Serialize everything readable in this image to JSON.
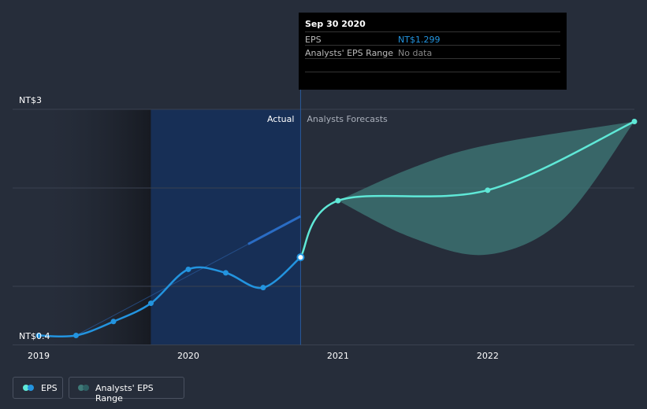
{
  "colors": {
    "background": "#262d3a",
    "eps_actual": "#2394df",
    "eps_forecast": "#5fe8d7",
    "range_fill": "#3f7a78",
    "actual_highlight": "#16305a"
  },
  "tooltip": {
    "date": "Sep 30 2020",
    "rows": [
      {
        "label": "EPS",
        "value": "NT$1.299",
        "color": "#2394df"
      },
      {
        "label": "Analysts' EPS Range",
        "value": "No data",
        "color": "#888888"
      }
    ]
  },
  "legend": {
    "eps_label": "EPS",
    "range_label": "Analysts' EPS Range"
  },
  "chart_data": {
    "type": "line",
    "title": "",
    "xlabel": "",
    "ylabel": "",
    "x_ticks": [
      "2019",
      "2020",
      "2021",
      "2022"
    ],
    "y_tick_labels": [
      "NT$3",
      "NT$0.4"
    ],
    "y_range": [
      0.4,
      3
    ],
    "section_labels": {
      "actual": "Actual",
      "forecast": "Analysts Forecasts"
    },
    "series": [
      {
        "name": "EPS",
        "segment": "actual",
        "points": [
          {
            "x": 2019.0,
            "y": 0.4
          },
          {
            "x": 2019.25,
            "y": 0.4
          },
          {
            "x": 2019.5,
            "y": 0.56
          },
          {
            "x": 2019.75,
            "y": 0.77
          },
          {
            "x": 2020.0,
            "y": 1.16
          },
          {
            "x": 2020.25,
            "y": 1.12
          },
          {
            "x": 2020.5,
            "y": 0.95
          },
          {
            "x": 2020.75,
            "y": 1.299
          }
        ]
      },
      {
        "name": "EPS",
        "segment": "forecast",
        "points": [
          {
            "x": 2020.75,
            "y": 1.299
          },
          {
            "x": 2021.0,
            "y": 1.95
          },
          {
            "x": 2022.0,
            "y": 2.07
          },
          {
            "x": 2022.98,
            "y": 2.86
          }
        ]
      }
    ],
    "trend_line": {
      "from": {
        "x": 2019.25,
        "y": 0.4
      },
      "to": {
        "x": 2020.75,
        "y": 1.77
      }
    },
    "range": {
      "upper": [
        {
          "x": 2021.0,
          "y": 1.95
        },
        {
          "x": 2021.5,
          "y": 2.33
        },
        {
          "x": 2022.0,
          "y": 2.59
        },
        {
          "x": 2022.98,
          "y": 2.86
        }
      ],
      "lower": [
        {
          "x": 2021.0,
          "y": 1.95
        },
        {
          "x": 2021.5,
          "y": 1.52
        },
        {
          "x": 2022.0,
          "y": 1.33
        },
        {
          "x": 2022.5,
          "y": 1.73
        },
        {
          "x": 2022.98,
          "y": 2.86
        }
      ]
    }
  }
}
